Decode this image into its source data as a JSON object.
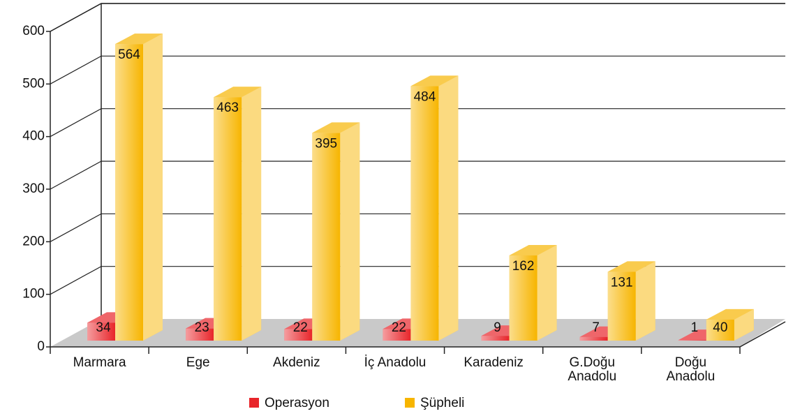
{
  "chart_data": {
    "type": "bar3d",
    "categories": [
      "Marmara",
      "Ege",
      "Akdeniz",
      "İç Anadolu",
      "Karadeniz",
      "G.Doğu\nAnadolu",
      "Doğu\nAnadolu"
    ],
    "series": [
      {
        "name": "Operasyon",
        "color": "#e8252a",
        "values": [
          34,
          23,
          22,
          22,
          9,
          7,
          1
        ]
      },
      {
        "name": "Şüpheli",
        "color": "#f7b500",
        "values": [
          564,
          463,
          395,
          484,
          162,
          131,
          40
        ]
      }
    ],
    "ylim": [
      0,
      600
    ],
    "yticks": [
      0,
      100,
      200,
      300,
      400,
      500,
      600
    ],
    "grid": true,
    "legend": "bottom"
  }
}
